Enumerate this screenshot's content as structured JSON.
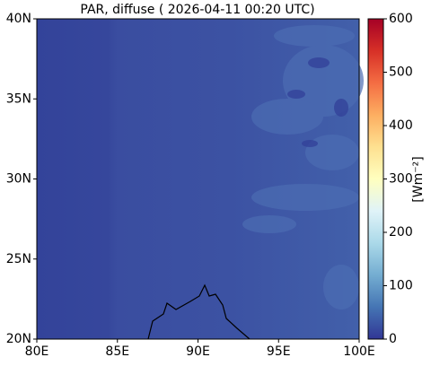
{
  "chart_data": {
    "type": "map",
    "title": "PAR, diffuse ( 2026-04-11 00:20 UTC)",
    "xlim": [
      80,
      100
    ],
    "xticks": [
      {
        "value": 80,
        "label": "80E"
      },
      {
        "value": 85,
        "label": "85E"
      },
      {
        "value": 90,
        "label": "90E"
      },
      {
        "value": 95,
        "label": "95E"
      },
      {
        "value": 100,
        "label": "100E"
      }
    ],
    "ylim": [
      20,
      40
    ],
    "yticks": [
      {
        "value": 20,
        "label": "20N"
      },
      {
        "value": 25,
        "label": "25N"
      },
      {
        "value": 30,
        "label": "30N"
      },
      {
        "value": 35,
        "label": "35N"
      },
      {
        "value": 40,
        "label": "40N"
      }
    ],
    "colorbar": {
      "label": "[Wm⁻²]",
      "lim": [
        0,
        600
      ],
      "ticks": [
        0,
        100,
        200,
        300,
        400,
        500,
        600
      ]
    }
  }
}
